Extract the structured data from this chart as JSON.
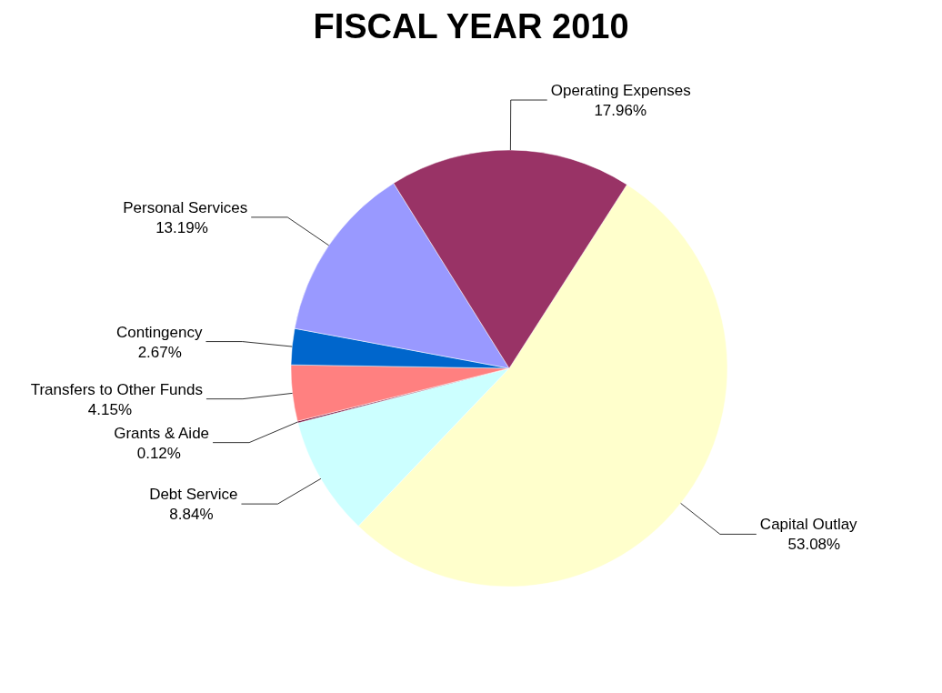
{
  "chart_data": {
    "type": "pie",
    "title": "FISCAL YEAR 2010",
    "categories": [
      "Capital Outlay",
      "Debt Service",
      "Grants & Aide",
      "Transfers to Other Funds",
      "Contingency",
      "Personal Services",
      "Operating Expenses"
    ],
    "values": [
      53.08,
      8.84,
      0.12,
      4.15,
      2.67,
      13.19,
      17.96
    ],
    "value_labels": [
      "53.08%",
      "8.84%",
      "0.12%",
      "4.15%",
      "2.67%",
      "13.19%",
      "17.96%"
    ],
    "colors": [
      "#ffffcc",
      "#ccffff",
      "#660033",
      "#ff8080",
      "#0066cc",
      "#9999ff",
      "#993366"
    ]
  }
}
